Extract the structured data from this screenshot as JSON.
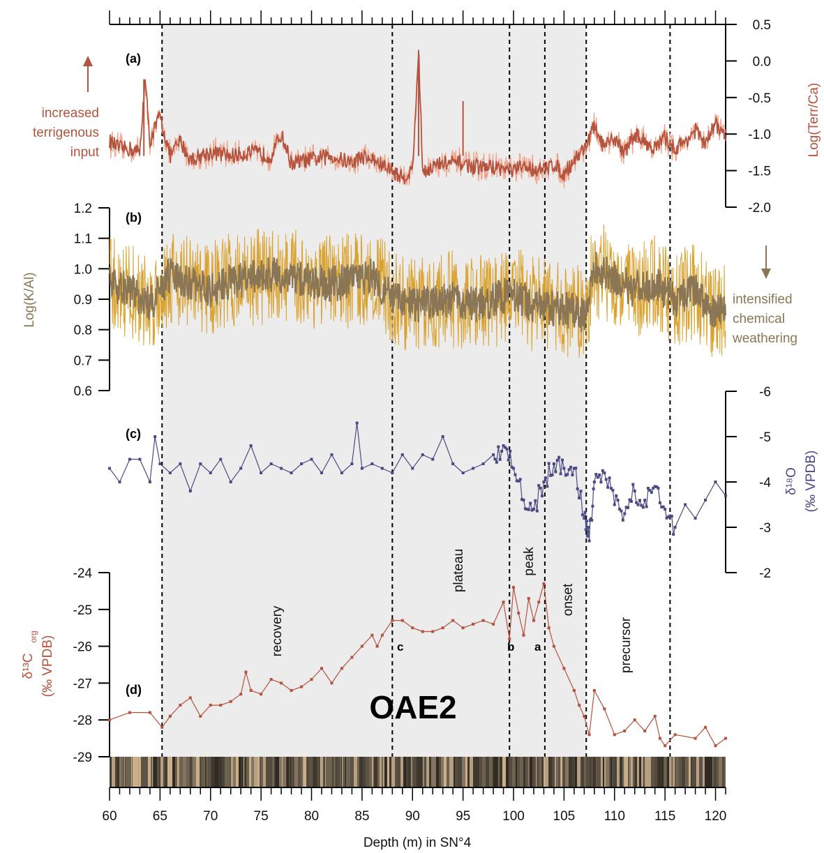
{
  "chart_data": {
    "type": "line",
    "x_axis": {
      "label": "Depth (m) in SN°4",
      "range": [
        60,
        121
      ],
      "ticks": [
        60,
        65,
        70,
        75,
        80,
        85,
        90,
        95,
        100,
        105,
        110,
        115,
        120
      ]
    },
    "shaded_interval": [
      65.2,
      107.2
    ],
    "boundaries": [
      65.2,
      88.0,
      99.6,
      103.1,
      107.2,
      115.5
    ],
    "colors": {
      "terr": "#b4533e",
      "terr_light": "#f3a186",
      "kal": "#8a7654",
      "kal_light": "#d9a12e",
      "d18o": "#4a4a85",
      "d13c": "#b4533e",
      "shade": "#ececec"
    },
    "panel_a": {
      "panel_label": "(a)",
      "ylabel": "Log(Terr/Ca)",
      "ylim": [
        -2.0,
        0.5
      ],
      "yticks": [
        "0.5",
        "0.0",
        "-0.5",
        "-1.0",
        "-1.5",
        "-2.0"
      ],
      "note_lines": [
        "increased",
        "terrigenous",
        "input"
      ],
      "series": [
        {
          "name": "Log(Terr/Ca)",
          "x": [
            60,
            61,
            62,
            63,
            63.5,
            64,
            65,
            66,
            67,
            68,
            70,
            72,
            74,
            76,
            77,
            78,
            80,
            82,
            84,
            85,
            86,
            88,
            89,
            90,
            90.6,
            91,
            93,
            95,
            96,
            98,
            100,
            101,
            103,
            104,
            105,
            106,
            107,
            108,
            109,
            110,
            111,
            112,
            113,
            114,
            115,
            116,
            117,
            118,
            119,
            120,
            121
          ],
          "y": [
            -1.1,
            -1.2,
            -1.2,
            -1.25,
            -0.25,
            -1.1,
            -0.75,
            -1.3,
            -1.1,
            -1.35,
            -1.25,
            -1.3,
            -1.25,
            -1.3,
            -1.0,
            -1.4,
            -1.35,
            -1.3,
            -1.4,
            -1.3,
            -1.35,
            -1.5,
            -1.6,
            -1.5,
            0.15,
            -1.5,
            -1.4,
            -1.4,
            -1.45,
            -1.45,
            -1.5,
            -1.45,
            -1.5,
            -1.4,
            -1.55,
            -1.35,
            -1.2,
            -0.9,
            -1.2,
            -1.05,
            -1.25,
            -1.0,
            -1.1,
            -1.2,
            -1.05,
            -1.2,
            -1.1,
            -0.95,
            -1.15,
            -0.85,
            -1.05
          ]
        }
      ]
    },
    "panel_b": {
      "panel_label": "(b)",
      "ylabel": "Log(K/Al)",
      "ylim": [
        0.6,
        1.2
      ],
      "yticks": [
        "1.2",
        "1.1",
        "1.0",
        "0.9",
        "0.8",
        "0.7",
        "0.6"
      ],
      "note_lines": [
        "intensified",
        "chemical",
        "weathering"
      ],
      "series": [
        {
          "name": "Log(K/Al)",
          "x": [
            60,
            62,
            64,
            66,
            68,
            70,
            72,
            74,
            76,
            78,
            80,
            82,
            84,
            86,
            88,
            90,
            92,
            94,
            96,
            98,
            100,
            102,
            104,
            106,
            107,
            108,
            110,
            112,
            114,
            116,
            118,
            120,
            121
          ],
          "y": [
            0.95,
            0.93,
            0.88,
            0.98,
            0.95,
            0.93,
            0.96,
            0.97,
            0.98,
            0.97,
            0.96,
            0.95,
            0.96,
            0.98,
            0.9,
            0.88,
            0.89,
            0.9,
            0.88,
            0.9,
            0.92,
            0.88,
            0.87,
            0.86,
            0.85,
            1.0,
            0.97,
            0.93,
            0.95,
            0.9,
            0.93,
            0.85,
            0.88
          ]
        }
      ]
    },
    "panel_c": {
      "panel_label": "(c)",
      "ylabel_lines": [
        "δ¹⁸O",
        "(‰ VPDB)"
      ],
      "ylim": [
        -6,
        -2
      ],
      "reversed": true,
      "yticks": [
        "-6",
        "-5",
        "-4",
        "-3",
        "-2"
      ],
      "series": [
        {
          "name": "δ18O",
          "x": [
            60,
            61,
            62,
            63,
            64,
            64.5,
            65,
            66,
            67,
            68,
            69,
            70,
            71,
            72,
            73,
            74,
            75,
            76,
            77,
            78,
            79,
            80,
            81,
            82,
            83,
            84,
            84.5,
            85,
            86,
            87,
            88,
            89,
            90,
            91,
            92,
            93,
            94,
            95,
            96,
            97,
            98,
            99,
            100,
            101,
            102,
            103,
            104,
            105,
            106,
            107,
            107.5,
            108,
            109,
            110,
            111,
            112,
            113,
            114,
            115,
            116,
            117,
            118,
            119,
            120,
            121
          ],
          "y": [
            -4.3,
            -4.0,
            -4.5,
            -4.5,
            -4.0,
            -5.0,
            -4.4,
            -4.2,
            -4.4,
            -3.8,
            -4.4,
            -4.2,
            -4.5,
            -4.0,
            -4.3,
            -4.8,
            -4.2,
            -4.4,
            -4.3,
            -4.2,
            -4.4,
            -4.5,
            -4.2,
            -4.6,
            -4.2,
            -4.4,
            -5.3,
            -4.3,
            -4.4,
            -4.3,
            -4.2,
            -4.6,
            -4.3,
            -4.6,
            -4.5,
            -5.0,
            -4.4,
            -4.2,
            -4.3,
            -4.4,
            -4.6,
            -4.8,
            -4.3,
            -3.6,
            -3.4,
            -4.0,
            -4.4,
            -4.3,
            -4.3,
            -3.2,
            -2.7,
            -4.0,
            -4.2,
            -3.5,
            -3.3,
            -3.8,
            -3.6,
            -3.9,
            -3.4,
            -3.0,
            -3.5,
            -3.2,
            -3.6,
            -4.0,
            -3.7
          ]
        }
      ]
    },
    "panel_d": {
      "panel_label": "(d)",
      "ylabel_lines": [
        "δ¹³C",
        "org",
        "(‰ VPDB)"
      ],
      "ylim": [
        -29,
        -24
      ],
      "yticks": [
        "-24",
        "-25",
        "-26",
        "-27",
        "-28",
        "-29"
      ],
      "series": [
        {
          "name": "δ13Corg",
          "x": [
            60,
            62,
            64,
            65.2,
            66,
            67,
            68,
            69,
            70,
            71,
            72,
            73,
            73.5,
            74,
            75,
            76,
            77,
            78,
            79,
            80,
            81,
            82,
            83,
            84,
            85,
            86,
            86.5,
            87,
            88,
            89,
            90,
            91,
            92,
            93,
            94,
            95,
            96,
            97,
            98,
            99,
            99.6,
            100,
            100.5,
            101,
            101.5,
            102,
            102.5,
            103,
            103.5,
            104,
            105,
            106,
            106.5,
            107,
            107.5,
            108,
            109,
            110,
            111,
            112,
            113,
            114,
            114.5,
            115,
            116,
            118,
            119,
            120,
            121
          ],
          "y": [
            -28.0,
            -27.8,
            -27.8,
            -28.2,
            -27.9,
            -27.6,
            -27.4,
            -27.9,
            -27.6,
            -27.6,
            -27.5,
            -27.3,
            -26.7,
            -27.2,
            -27.3,
            -26.9,
            -27.0,
            -27.2,
            -27.1,
            -26.9,
            -26.6,
            -27.0,
            -26.6,
            -26.3,
            -26.0,
            -25.7,
            -26.0,
            -25.7,
            -25.3,
            -25.3,
            -25.5,
            -25.6,
            -25.6,
            -25.5,
            -25.3,
            -25.5,
            -25.4,
            -25.3,
            -25.4,
            -24.8,
            -25.8,
            -24.4,
            -25.1,
            -25.7,
            -24.7,
            -25.3,
            -24.8,
            -24.3,
            -25.5,
            -26.0,
            -26.6,
            -27.2,
            -27.6,
            -27.9,
            -28.4,
            -27.2,
            -27.7,
            -28.4,
            -28.3,
            -28.0,
            -28.3,
            -27.9,
            -28.5,
            -28.7,
            -28.4,
            -28.5,
            -28.2,
            -28.7,
            -28.5
          ]
        }
      ],
      "phase_labels": [
        "recovery",
        "plateau",
        "peak",
        "onset",
        "precursor"
      ],
      "markers": [
        "c",
        "b",
        "a"
      ],
      "event_label": "OAE2"
    }
  }
}
